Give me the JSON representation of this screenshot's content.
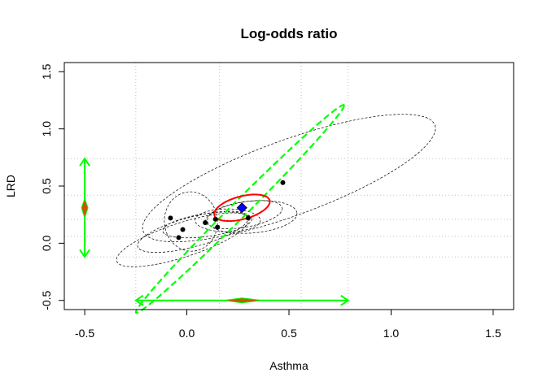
{
  "chart_data": {
    "type": "scatter",
    "title": "Log-odds ratio",
    "xlabel": "Asthma",
    "ylabel": "LRD",
    "xlim": [
      -0.6,
      1.6
    ],
    "ylim": [
      -0.58,
      1.58
    ],
    "x_ticks": [
      -0.5,
      0.0,
      0.5,
      1.0,
      1.5
    ],
    "y_ticks": [
      -0.5,
      0.0,
      0.5,
      1.0,
      1.5
    ],
    "x_tick_labels": [
      "-0.5",
      "0.0",
      "0.5",
      "1.0",
      "1.5"
    ],
    "y_tick_labels": [
      "-0.5",
      "0.0",
      "0.5",
      "1.0",
      "1.5"
    ],
    "grid_x": [
      -0.25,
      0.16,
      0.56,
      0.79
    ],
    "grid_y": [
      -0.12,
      0.06,
      0.21,
      0.42,
      0.74
    ],
    "points": [
      {
        "x": -0.08,
        "y": 0.22
      },
      {
        "x": -0.02,
        "y": 0.12
      },
      {
        "x": -0.04,
        "y": 0.05
      },
      {
        "x": 0.09,
        "y": 0.18
      },
      {
        "x": 0.14,
        "y": 0.21
      },
      {
        "x": 0.15,
        "y": 0.14
      },
      {
        "x": 0.3,
        "y": 0.22
      },
      {
        "x": 0.47,
        "y": 0.53
      }
    ],
    "study_ellipses": [
      {
        "cx": 0.5,
        "cy": 0.57,
        "rx": 0.76,
        "ry": 0.33,
        "angle_deg": 20
      },
      {
        "cx": 0.02,
        "cy": 0.19,
        "rx": 0.13,
        "ry": 0.26,
        "angle_deg": 5
      },
      {
        "cx": 0.03,
        "cy": 0.1,
        "rx": 0.28,
        "ry": 0.13,
        "angle_deg": 15
      },
      {
        "cx": -0.02,
        "cy": 0.03,
        "rx": 0.34,
        "ry": 0.15,
        "angle_deg": 18
      },
      {
        "cx": 0.1,
        "cy": 0.16,
        "rx": 0.22,
        "ry": 0.1,
        "angle_deg": 8
      },
      {
        "cx": 0.2,
        "cy": 0.2,
        "rx": 0.16,
        "ry": 0.1,
        "angle_deg": 0
      },
      {
        "cx": 0.28,
        "cy": 0.25,
        "rx": 0.19,
        "ry": 0.11,
        "angle_deg": 10
      },
      {
        "cx": 0.32,
        "cy": 0.23,
        "rx": 0.22,
        "ry": 0.14,
        "angle_deg": 5
      }
    ],
    "pooled_estimate": {
      "x": 0.27,
      "y": 0.31
    },
    "pooled_ellipse": {
      "cx": 0.27,
      "cy": 0.31,
      "rx": 0.14,
      "ry": 0.1,
      "angle_deg": 15
    },
    "prediction_ellipse": {
      "cx": 0.26,
      "cy": 0.3,
      "rx": 0.72,
      "ry": 0.07,
      "angle_deg": 45
    },
    "x_interval": {
      "lower": -0.25,
      "upper": 0.79,
      "at_y": -0.5
    },
    "y_interval": {
      "lower": -0.12,
      "upper": 0.74,
      "at_x": -0.5
    },
    "x_diamond": {
      "lower": 0.18,
      "center": 0.27,
      "upper": 0.37
    },
    "y_diamond": {
      "lower": 0.22,
      "center": 0.31,
      "upper": 0.39
    },
    "colors": {
      "points": "#000000",
      "study_ellipse": "#000000",
      "pooled_ellipse": "#ff0000",
      "pooled_marker": "#0000ff",
      "prediction": "#00ff00",
      "diamond_fill": "#cc5500",
      "grid": "#bfbfbf"
    }
  }
}
